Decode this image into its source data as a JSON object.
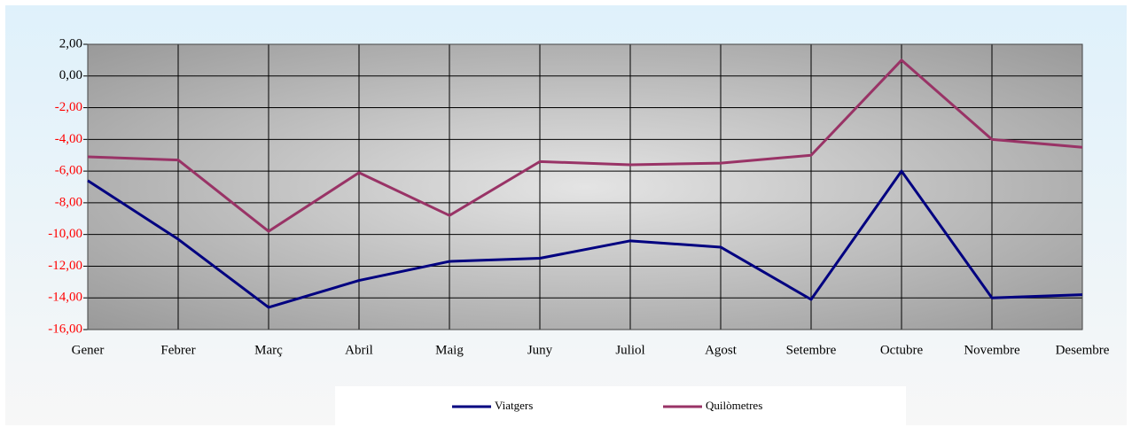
{
  "chart_data": {
    "type": "line",
    "categories": [
      "Gener",
      "Febrer",
      "Març",
      "Abril",
      "Maig",
      "Juny",
      "Juliol",
      "Agost",
      "Setembre",
      "Octubre",
      "Novembre",
      "Desembre"
    ],
    "series": [
      {
        "name": "Viatgers",
        "color": "#000080",
        "values": [
          -6.6,
          -10.3,
          -14.6,
          -12.9,
          -11.7,
          -11.5,
          -10.4,
          -10.8,
          -14.1,
          -6.0,
          -14.0,
          -13.8
        ]
      },
      {
        "name": "Quilòmetres",
        "color": "#993366",
        "values": [
          -5.1,
          -5.3,
          -9.8,
          -6.1,
          -8.8,
          -5.4,
          -5.6,
          -5.5,
          -5.0,
          1.0,
          -4.0,
          -4.5
        ]
      }
    ],
    "ylim": [
      -16,
      2
    ],
    "yticks": [
      {
        "value": 2,
        "label": "2,00"
      },
      {
        "value": 0,
        "label": "0,00"
      },
      {
        "value": -2,
        "label": "-2,00"
      },
      {
        "value": -4,
        "label": "-4,00"
      },
      {
        "value": -6,
        "label": "-6,00"
      },
      {
        "value": -8,
        "label": "-8,00"
      },
      {
        "value": -10,
        "label": "-10,00"
      },
      {
        "value": -12,
        "label": "-12,00"
      },
      {
        "value": -14,
        "label": "-14,00"
      },
      {
        "value": -16,
        "label": "-16,00"
      }
    ],
    "grid": true,
    "negative_tick_color": "#ff0000",
    "legend": "bottom"
  }
}
